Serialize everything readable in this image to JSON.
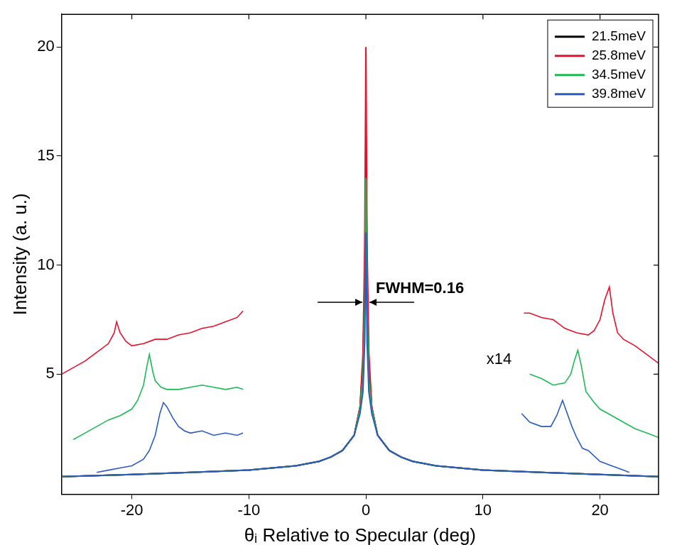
{
  "chart_data": {
    "type": "line",
    "x_label": "θᵢ Relative to Specular (deg)",
    "y_label": "Intensity (a. u.)",
    "xlim": [
      -26,
      25
    ],
    "xticks": [
      -20,
      -10,
      0,
      10,
      20
    ],
    "ylim": [
      -0.5,
      21.5
    ],
    "yticks": [
      5,
      10,
      15,
      20
    ],
    "grid": false,
    "legend": "upper right",
    "annotations": [
      "FWHM=0.16",
      "x14"
    ],
    "x": [
      -26,
      -20,
      -15,
      -10,
      -6,
      -4,
      -3,
      -2,
      -1,
      -0.5,
      -0.25,
      -0.1,
      0,
      0.1,
      0.25,
      0.5,
      1,
      2,
      3,
      4,
      6,
      10,
      15,
      20,
      25
    ],
    "series": [
      {
        "name": "21.5meV",
        "color": "#000000",
        "values": [
          0.3,
          0.4,
          0.5,
          0.6,
          0.8,
          1.0,
          1.2,
          1.5,
          2.2,
          3.5,
          5.5,
          9.5,
          16.0,
          9.5,
          5.5,
          3.5,
          2.2,
          1.5,
          1.2,
          1.0,
          0.8,
          0.6,
          0.5,
          0.4,
          0.3
        ]
      },
      {
        "name": "25.8meV",
        "color": "#e8102a",
        "values": [
          0.3,
          0.4,
          0.5,
          0.6,
          0.8,
          1.0,
          1.2,
          1.5,
          2.2,
          3.5,
          6.0,
          11.0,
          20.0,
          11.0,
          6.0,
          3.5,
          2.2,
          1.5,
          1.2,
          1.0,
          0.8,
          0.6,
          0.5,
          0.4,
          0.3
        ]
      },
      {
        "name": "34.5meV",
        "color": "#1db954",
        "values": [
          0.3,
          0.4,
          0.5,
          0.6,
          0.8,
          1.0,
          1.2,
          1.5,
          2.2,
          3.4,
          4.8,
          8.0,
          14.0,
          8.0,
          4.8,
          3.4,
          2.2,
          1.5,
          1.2,
          1.0,
          0.8,
          0.6,
          0.5,
          0.4,
          0.3
        ]
      },
      {
        "name": "39.8meV",
        "color": "#2a5cbf",
        "values": [
          0.3,
          0.4,
          0.5,
          0.6,
          0.8,
          1.0,
          1.2,
          1.5,
          2.2,
          3.2,
          4.2,
          6.5,
          11.5,
          6.5,
          4.2,
          3.2,
          2.2,
          1.5,
          1.2,
          1.0,
          0.8,
          0.6,
          0.5,
          0.4,
          0.3
        ]
      }
    ],
    "magnified": [
      {
        "series": "25.8meV",
        "x": [
          -26,
          -25,
          -24,
          -23,
          -22,
          -21.5,
          -21.3,
          -21,
          -20.5,
          -20,
          -19,
          -18,
          -17,
          -16,
          -15,
          -14,
          -13,
          -12,
          -11,
          -10.5
        ],
        "values": [
          5.0,
          5.3,
          5.6,
          6.0,
          6.4,
          6.9,
          7.4,
          6.9,
          6.5,
          6.3,
          6.4,
          6.6,
          6.6,
          6.8,
          6.9,
          7.1,
          7.2,
          7.4,
          7.6,
          7.9
        ]
      },
      {
        "series": "34.5meV",
        "x": [
          -25,
          -24,
          -23,
          -22,
          -21,
          -20,
          -19.5,
          -19,
          -18.7,
          -18.5,
          -18.2,
          -18,
          -17.5,
          -17,
          -16,
          -15,
          -14,
          -13,
          -12,
          -11,
          -10.5
        ],
        "values": [
          2.0,
          2.3,
          2.6,
          2.9,
          3.1,
          3.4,
          3.8,
          4.5,
          5.4,
          5.9,
          5.1,
          4.7,
          4.4,
          4.3,
          4.3,
          4.4,
          4.5,
          4.4,
          4.3,
          4.4,
          4.3
        ]
      },
      {
        "series": "39.8meV",
        "x": [
          -23,
          -22,
          -21,
          -20,
          -19,
          -18.5,
          -18,
          -17.6,
          -17.3,
          -17,
          -16.5,
          -16,
          -15.5,
          -15,
          -14,
          -13,
          -12,
          -11,
          -10.5
        ],
        "values": [
          0.5,
          0.6,
          0.7,
          0.8,
          1.1,
          1.5,
          2.2,
          3.2,
          3.7,
          3.5,
          3.0,
          2.6,
          2.4,
          2.3,
          2.4,
          2.2,
          2.3,
          2.2,
          2.3
        ]
      },
      {
        "series": "25.8meV",
        "x": [
          13.5,
          14,
          15,
          16,
          17,
          18,
          19,
          19.5,
          20,
          20.4,
          20.8,
          21.1,
          21.5,
          22,
          23,
          24,
          25
        ],
        "values": [
          7.8,
          7.8,
          7.6,
          7.5,
          7.1,
          6.9,
          6.8,
          7.0,
          7.5,
          8.4,
          9.0,
          7.8,
          6.9,
          6.6,
          6.3,
          5.9,
          5.5
        ]
      },
      {
        "series": "34.5meV",
        "x": [
          14,
          15,
          16,
          17,
          17.5,
          17.8,
          18.1,
          18.4,
          18.8,
          19.5,
          20,
          21,
          22,
          23,
          24,
          25
        ],
        "values": [
          5.0,
          4.8,
          4.5,
          4.6,
          5.0,
          5.6,
          6.1,
          5.4,
          4.2,
          3.7,
          3.4,
          3.1,
          2.8,
          2.5,
          2.3,
          2.1
        ]
      },
      {
        "series": "39.8meV",
        "x": [
          13.3,
          14,
          15,
          15.8,
          16.3,
          16.8,
          17.2,
          17.6,
          18,
          18.5,
          19,
          20,
          21,
          22,
          22.5
        ],
        "values": [
          3.2,
          2.8,
          2.6,
          2.6,
          3.1,
          3.8,
          3.2,
          2.6,
          2.1,
          1.6,
          1.5,
          1.0,
          0.8,
          0.6,
          0.5
        ]
      }
    ]
  }
}
